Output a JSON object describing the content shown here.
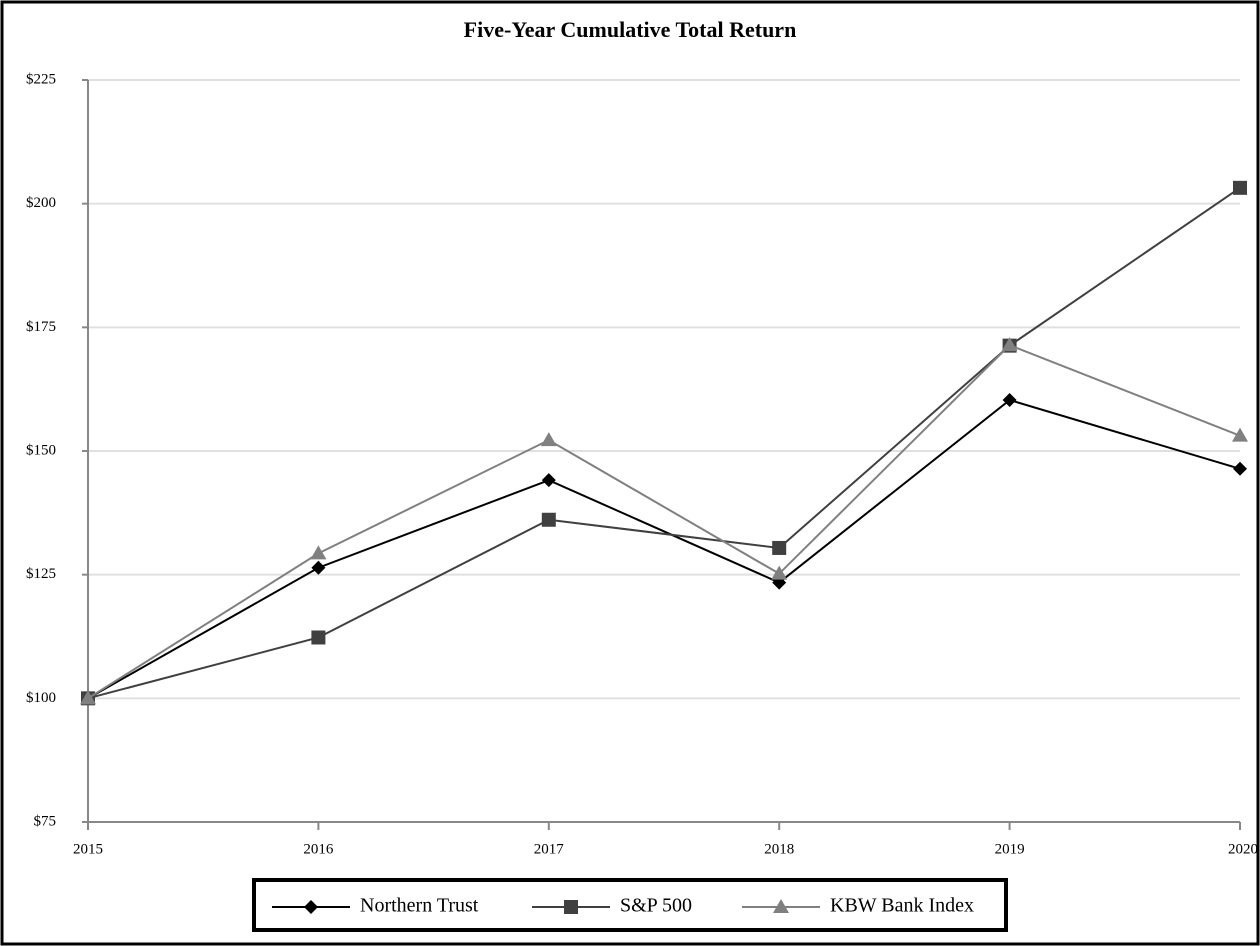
{
  "chart_data": {
    "type": "line",
    "title": "Five-Year Cumulative Total Return",
    "categories": [
      "2015",
      "2016",
      "2017",
      "2018",
      "2019",
      "2020"
    ],
    "series": [
      {
        "name": "Northern Trust",
        "color": "#000000",
        "marker": "diamond",
        "values": [
          100,
          126.4,
          144.1,
          123.4,
          160.3,
          146.4
        ]
      },
      {
        "name": "S&P 500",
        "color": "#404040",
        "marker": "square",
        "values": [
          100,
          112.3,
          136.1,
          130.4,
          171.3,
          203.2
        ]
      },
      {
        "name": "KBW Bank Index",
        "color": "#808080",
        "marker": "triangle",
        "values": [
          100,
          129.3,
          152.2,
          125.2,
          171.4,
          153.1
        ]
      }
    ],
    "ylim": [
      75,
      225
    ],
    "yticks": [
      {
        "value": 75,
        "label": "$75"
      },
      {
        "value": 100,
        "label": "$100"
      },
      {
        "value": 125,
        "label": "$125"
      },
      {
        "value": 150,
        "label": "$150"
      },
      {
        "value": 175,
        "label": "$175"
      },
      {
        "value": 200,
        "label": "$200"
      },
      {
        "value": 225,
        "label": "$225"
      }
    ],
    "grid": true,
    "legend": "bottom"
  }
}
